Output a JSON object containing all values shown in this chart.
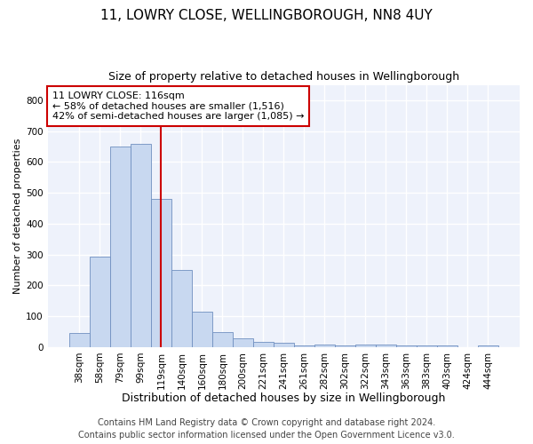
{
  "title": "11, LOWRY CLOSE, WELLINGBOROUGH, NN8 4UY",
  "subtitle": "Size of property relative to detached houses in Wellingborough",
  "xlabel": "Distribution of detached houses by size in Wellingborough",
  "ylabel": "Number of detached properties",
  "categories": [
    "38sqm",
    "58sqm",
    "79sqm",
    "99sqm",
    "119sqm",
    "140sqm",
    "160sqm",
    "180sqm",
    "200sqm",
    "221sqm",
    "241sqm",
    "261sqm",
    "282sqm",
    "302sqm",
    "322sqm",
    "343sqm",
    "363sqm",
    "383sqm",
    "403sqm",
    "424sqm",
    "444sqm"
  ],
  "values": [
    45,
    293,
    650,
    660,
    480,
    250,
    115,
    48,
    27,
    17,
    14,
    5,
    7,
    5,
    7,
    7,
    5,
    5,
    5,
    0,
    5
  ],
  "bar_color": "#c8d8f0",
  "bar_edgecolor": "#7090c0",
  "vline_x_index": 4,
  "vline_color": "#cc0000",
  "annotation_line1": "11 LOWRY CLOSE: 116sqm",
  "annotation_line2": "← 58% of detached houses are smaller (1,516)",
  "annotation_line3": "42% of semi-detached houses are larger (1,085) →",
  "annotation_box_edgecolor": "#cc0000",
  "annotation_box_facecolor": "#ffffff",
  "ylim": [
    0,
    850
  ],
  "yticks": [
    0,
    100,
    200,
    300,
    400,
    500,
    600,
    700,
    800
  ],
  "footer_line1": "Contains HM Land Registry data © Crown copyright and database right 2024.",
  "footer_line2": "Contains public sector information licensed under the Open Government Licence v3.0.",
  "background_color": "#eef2fb",
  "grid_color": "#ffffff",
  "title_fontsize": 11,
  "subtitle_fontsize": 9,
  "xlabel_fontsize": 9,
  "ylabel_fontsize": 8,
  "tick_fontsize": 7.5,
  "annotation_fontsize": 8,
  "footer_fontsize": 7
}
